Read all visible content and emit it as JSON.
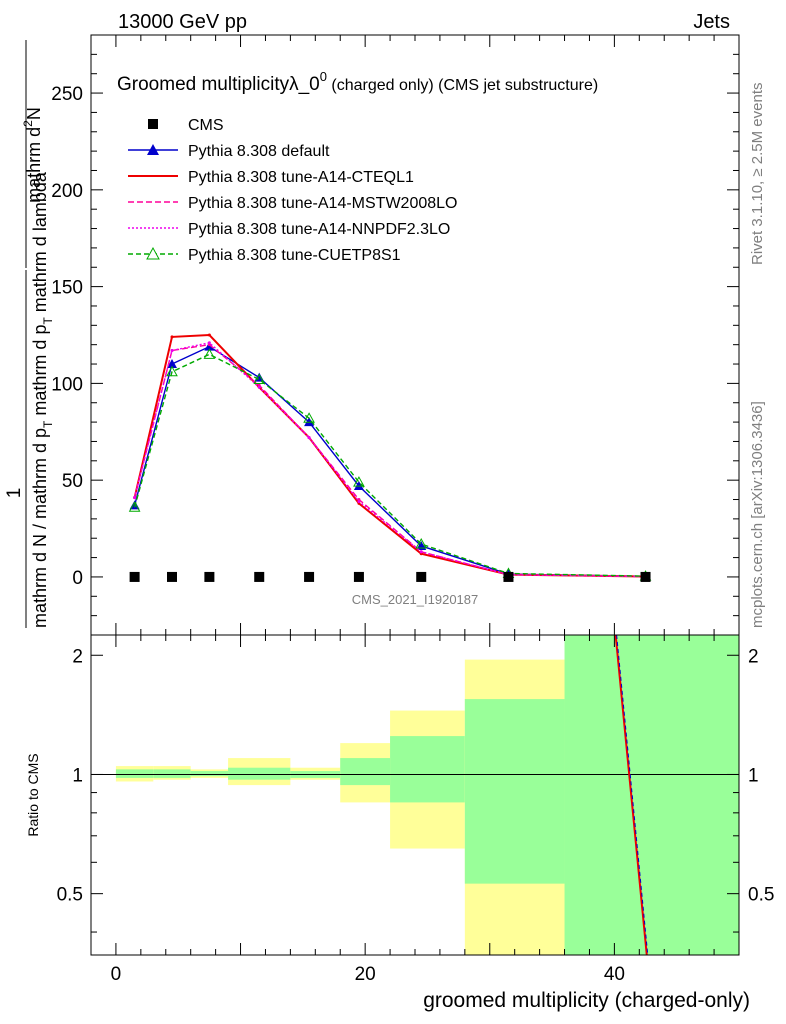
{
  "header": {
    "left": "13000 GeV pp",
    "right": "Jets",
    "side_right_top": "Rivet 3.1.10, ≥ 2.5M events",
    "side_right_bottom": "mcplots.cern.ch [arXiv:1306.3436]"
  },
  "chart_data": {
    "type": "line",
    "title": "Groomed multiplicityλ_0",
    "title_sup": "0",
    "title_suffix": " (charged only) (CMS jet substructure)",
    "watermark": "CMS_2021_I1920187",
    "ylabel_num": "mathrm d",
    "ylabel_num_sup": "2",
    "ylabel_num_end": "N",
    "ylabel_den": "mathrm d p",
    "ylabel_den_sub": "T",
    "ylabel_den_end": " mathrm d lambda",
    "ylabel_one": "1",
    "ylabel_bottom": "mathrm d N / mathrm d p",
    "ylabel_bottom_sub": "T",
    "xlabel": "groomed multiplicity (charged-only)",
    "ratio_ylabel": "Ratio to CMS",
    "xlim": [
      -2,
      50
    ],
    "ylim": [
      -30,
      280
    ],
    "ratio_ylim": [
      0.35,
      2.25
    ],
    "x_ticks": [
      "0",
      "20",
      "40"
    ],
    "x_tick_values": [
      0,
      20,
      40
    ],
    "y_ticks": [
      "0",
      "50",
      "100",
      "150",
      "200",
      "250"
    ],
    "y_tick_values": [
      0,
      50,
      100,
      150,
      200,
      250
    ],
    "ratio_ticks": [
      "0.5",
      "1",
      "2"
    ],
    "ratio_tick_values": [
      0.5,
      1,
      2
    ],
    "bins": [
      [
        0,
        3
      ],
      [
        3,
        6
      ],
      [
        6,
        9
      ],
      [
        9,
        14
      ],
      [
        14,
        18
      ],
      [
        18,
        22
      ],
      [
        22,
        28
      ],
      [
        28,
        36
      ],
      [
        36,
        50
      ]
    ],
    "data": {
      "name": "CMS",
      "x": [
        1.5,
        4.5,
        7.5,
        11.5,
        15.5,
        19.5,
        24.5,
        31.5,
        42.5
      ],
      "y": [
        0,
        0,
        0,
        0,
        0,
        0,
        0,
        0,
        0
      ]
    },
    "band_green": [
      [
        0.98,
        1.03
      ],
      [
        0.98,
        1.03
      ],
      [
        0.99,
        1.02
      ],
      [
        0.97,
        1.04
      ],
      [
        0.98,
        1.02
      ],
      [
        0.94,
        1.1
      ],
      [
        0.85,
        1.25
      ],
      [
        0.53,
        1.55
      ],
      [
        0.35,
        2.25
      ]
    ],
    "band_yellow": [
      [
        0.96,
        1.05
      ],
      [
        0.97,
        1.05
      ],
      [
        0.98,
        1.03
      ],
      [
        0.94,
        1.1
      ],
      [
        0.97,
        1.04
      ],
      [
        0.85,
        1.2
      ],
      [
        0.65,
        1.45
      ],
      [
        0.35,
        1.95
      ],
      [
        0.35,
        2.25
      ]
    ],
    "ratio_line": {
      "x": [
        40.1,
        42.6
      ],
      "y": [
        2.25,
        0.35
      ]
    },
    "series": [
      {
        "name": "Pythia 8.308 default",
        "color": "#0000cc",
        "dash": "",
        "marker": "triangle-filled",
        "x": [
          1.5,
          4.5,
          7.5,
          11.5,
          15.5,
          19.5,
          24.5,
          31.5,
          42.5
        ],
        "y": [
          37,
          110,
          119,
          103,
          80,
          47,
          16,
          1.5,
          0.3
        ]
      },
      {
        "name": "Pythia 8.308 tune-A14-CTEQL1",
        "color": "#ee0000",
        "dash": "",
        "marker": "none",
        "x": [
          1.5,
          4.5,
          7.5,
          11.5,
          15.5,
          19.5,
          24.5,
          31.5,
          42.5
        ],
        "y": [
          41,
          124,
          125,
          98,
          72,
          38,
          12,
          1.2,
          0.2
        ]
      },
      {
        "name": "Pythia 8.308 tune-A14-MSTW2008LO",
        "color": "#ff0099",
        "dash": "6,3",
        "marker": "none",
        "x": [
          1.5,
          4.5,
          7.5,
          11.5,
          15.5,
          19.5,
          24.5,
          31.5,
          42.5
        ],
        "y": [
          41,
          117,
          120,
          99,
          72,
          40,
          13,
          1.2,
          0.2
        ]
      },
      {
        "name": "Pythia 8.308 tune-A14-NNPDF2.3LO",
        "color": "#ee00ee",
        "dash": "2,2",
        "marker": "none",
        "x": [
          1.5,
          4.5,
          7.5,
          11.5,
          15.5,
          19.5,
          24.5,
          31.5,
          42.5
        ],
        "y": [
          41,
          117,
          121,
          98,
          72,
          39,
          13,
          1.2,
          0.2
        ]
      },
      {
        "name": "Pythia 8.308 tune-CUETP8S1",
        "color": "#00aa00",
        "dash": "5,3",
        "marker": "triangle-open",
        "x": [
          1.5,
          4.5,
          7.5,
          11.5,
          15.5,
          19.5,
          24.5,
          31.5,
          42.5
        ],
        "y": [
          36,
          106,
          115,
          102,
          82,
          49,
          17,
          1.8,
          0.4
        ]
      }
    ]
  }
}
